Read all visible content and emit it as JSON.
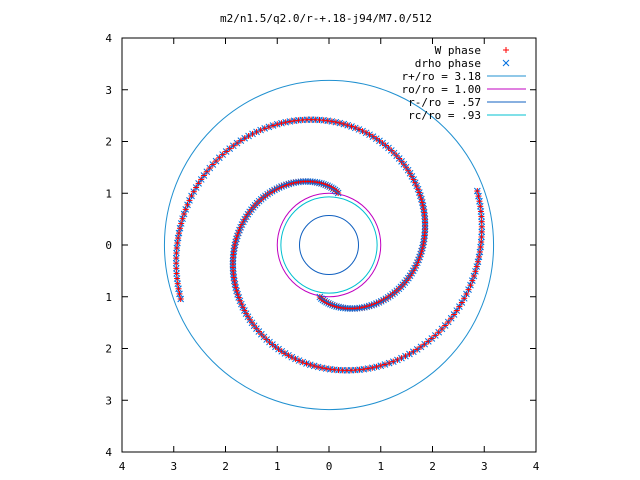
{
  "chart_data": {
    "type": "scatter",
    "title": "m2/n1.5/q2.0/r-+.18-j94/M7.0/512",
    "xlabel": "",
    "ylabel": "",
    "xlim": [
      -4,
      4
    ],
    "ylim": [
      -4,
      4
    ],
    "x_tick_labels": [
      "4",
      "3",
      "2",
      "1",
      "0",
      "1",
      "2",
      "3",
      "4"
    ],
    "y_tick_labels": [
      "4",
      "3",
      "2",
      "1",
      "0",
      "1",
      "2",
      "3",
      "4"
    ],
    "grid": false,
    "legend_position": "top-right",
    "colors": {
      "w_phase": "#ff0000",
      "drho_phase": "#0070e0",
      "r_plus": "#2090d0",
      "r_o": "#c000c0",
      "r_minus": "#1060c0",
      "r_c": "#00c0d0",
      "axes": "#000000"
    },
    "series": [
      {
        "name": "W phase",
        "marker": "plus",
        "note_points": "two-armed spiral, m=2 symmetric",
        "spiral": {
          "arms": 2,
          "r_inner": 1.02,
          "r_outer": 3.05,
          "theta_start_deg": 80,
          "theta_span_deg": 300
        }
      },
      {
        "name": "drho phase",
        "marker": "cross",
        "spiral": {
          "arms": 2,
          "r_inner": 1.02,
          "r_outer": 3.05,
          "theta_start_deg": 80,
          "theta_span_deg": 300
        }
      }
    ],
    "circles": [
      {
        "name": "r+/ro = 3.18",
        "radius": 3.18
      },
      {
        "name": "ro/ro = 1.00",
        "radius": 1.0
      },
      {
        "name": "r-/ro = .57",
        "radius": 0.57
      },
      {
        "name": "rc/ro = .93",
        "radius": 0.93
      }
    ]
  }
}
